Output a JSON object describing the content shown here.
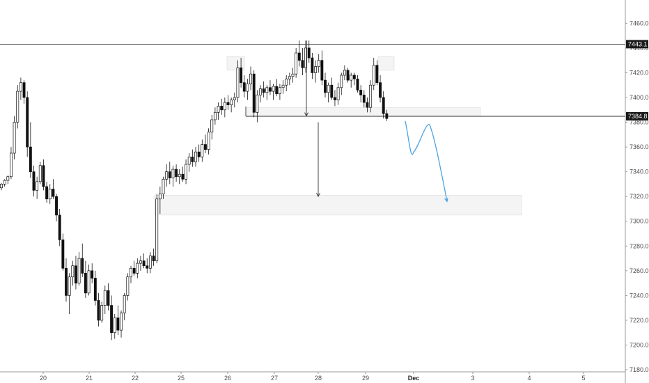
{
  "chart_data": {
    "type": "candlestick",
    "title": "",
    "x_tick_labels": [
      "20",
      "21",
      "22",
      "25",
      "26",
      "27",
      "28",
      "29",
      "Dec",
      "3",
      "4",
      "5"
    ],
    "y_tick_labels": [
      "7180.0",
      "7200.0",
      "7220.0",
      "7240.0",
      "7260.0",
      "7280.0",
      "7300.0",
      "7320.0",
      "7340.0",
      "7360.0",
      "7380.0",
      "7400.0",
      "7420.0",
      "7440.0",
      "7460.0"
    ],
    "ylim": [
      7177,
      7472
    ],
    "grid": false,
    "price_labels": [
      {
        "text": "7443.1",
        "value": 7443.1
      },
      {
        "text": "7384.8",
        "value": 7384.8
      }
    ],
    "horizontal_lines": [
      7443.1,
      7384.8
    ],
    "zones": [
      {
        "name": "support-zone",
        "from": 7385,
        "to": 7392
      },
      {
        "name": "target-zone",
        "from": 7305,
        "to": 7321
      },
      {
        "name": "left-shoulder-zone",
        "from": 7422,
        "to": 7433
      },
      {
        "name": "right-shoulder-zone",
        "from": 7422,
        "to": 7433
      }
    ],
    "measure_arrows": [
      {
        "name": "pattern-height-arrow",
        "from": 7446,
        "to": 7385
      },
      {
        "name": "projection-arrow",
        "from": 7380,
        "to": 7320
      }
    ],
    "projection_path": [
      7381,
      7356,
      7378,
      7316
    ],
    "projection_color": "#4da3e0",
    "candles": [
      [
        7327,
        7331,
        7325,
        7330
      ],
      [
        7330,
        7334,
        7328,
        7333
      ],
      [
        7333,
        7337,
        7330,
        7336
      ],
      [
        7336,
        7360,
        7334,
        7355
      ],
      [
        7355,
        7385,
        7350,
        7380
      ],
      [
        7380,
        7410,
        7375,
        7405
      ],
      [
        7405,
        7416,
        7398,
        7412
      ],
      [
        7412,
        7414,
        7395,
        7400
      ],
      [
        7400,
        7405,
        7352,
        7360
      ],
      [
        7360,
        7380,
        7335,
        7340
      ],
      [
        7340,
        7345,
        7320,
        7325
      ],
      [
        7325,
        7336,
        7318,
        7332
      ],
      [
        7332,
        7348,
        7330,
        7345
      ],
      [
        7345,
        7350,
        7325,
        7328
      ],
      [
        7328,
        7332,
        7315,
        7318
      ],
      [
        7318,
        7330,
        7314,
        7326
      ],
      [
        7326,
        7334,
        7318,
        7320
      ],
      [
        7320,
        7322,
        7300,
        7305
      ],
      [
        7305,
        7310,
        7280,
        7285
      ],
      [
        7285,
        7290,
        7260,
        7262
      ],
      [
        7262,
        7270,
        7235,
        7240
      ],
      [
        7240,
        7258,
        7225,
        7255
      ],
      [
        7255,
        7268,
        7248,
        7264
      ],
      [
        7264,
        7272,
        7245,
        7250
      ],
      [
        7250,
        7275,
        7248,
        7270
      ],
      [
        7270,
        7282,
        7255,
        7258
      ],
      [
        7258,
        7268,
        7238,
        7242
      ],
      [
        7242,
        7265,
        7240,
        7260
      ],
      [
        7260,
        7266,
        7250,
        7254
      ],
      [
        7254,
        7260,
        7232,
        7236
      ],
      [
        7236,
        7242,
        7215,
        7220
      ],
      [
        7220,
        7235,
        7218,
        7232
      ],
      [
        7232,
        7248,
        7225,
        7244
      ],
      [
        7244,
        7250,
        7228,
        7232
      ],
      [
        7232,
        7240,
        7204,
        7210
      ],
      [
        7210,
        7225,
        7205,
        7222
      ],
      [
        7222,
        7232,
        7208,
        7212
      ],
      [
        7212,
        7228,
        7206,
        7226
      ],
      [
        7226,
        7242,
        7220,
        7240
      ],
      [
        7240,
        7258,
        7236,
        7255
      ],
      [
        7255,
        7264,
        7250,
        7262
      ],
      [
        7262,
        7268,
        7256,
        7258
      ],
      [
        7258,
        7270,
        7254,
        7266
      ],
      [
        7266,
        7272,
        7260,
        7268
      ],
      [
        7268,
        7274,
        7262,
        7264
      ],
      [
        7264,
        7270,
        7258,
        7262
      ],
      [
        7262,
        7275,
        7258,
        7272
      ],
      [
        7272,
        7278,
        7264,
        7268
      ],
      [
        7268,
        7322,
        7266,
        7318
      ],
      [
        7318,
        7328,
        7306,
        7322
      ],
      [
        7322,
        7336,
        7318,
        7334
      ],
      [
        7334,
        7346,
        7328,
        7340
      ],
      [
        7340,
        7348,
        7330,
        7335
      ],
      [
        7335,
        7345,
        7328,
        7342
      ],
      [
        7342,
        7346,
        7332,
        7336
      ],
      [
        7336,
        7342,
        7330,
        7338
      ],
      [
        7338,
        7344,
        7332,
        7334
      ],
      [
        7334,
        7350,
        7330,
        7346
      ],
      [
        7346,
        7355,
        7340,
        7352
      ],
      [
        7352,
        7358,
        7344,
        7348
      ],
      [
        7348,
        7360,
        7344,
        7356
      ],
      [
        7356,
        7362,
        7348,
        7352
      ],
      [
        7352,
        7366,
        7348,
        7362
      ],
      [
        7362,
        7370,
        7355,
        7358
      ],
      [
        7358,
        7375,
        7354,
        7372
      ],
      [
        7372,
        7386,
        7366,
        7382
      ],
      [
        7382,
        7392,
        7378,
        7388
      ],
      [
        7388,
        7396,
        7382,
        7393
      ],
      [
        7393,
        7399,
        7386,
        7390
      ],
      [
        7390,
        7400,
        7384,
        7396
      ],
      [
        7396,
        7402,
        7390,
        7394
      ],
      [
        7394,
        7400,
        7388,
        7398
      ],
      [
        7398,
        7404,
        7392,
        7400
      ],
      [
        7400,
        7430,
        7396,
        7424
      ],
      [
        7424,
        7432,
        7408,
        7412
      ],
      [
        7412,
        7418,
        7400,
        7405
      ],
      [
        7405,
        7415,
        7398,
        7411
      ],
      [
        7411,
        7425,
        7406,
        7419
      ],
      [
        7419,
        7422,
        7384,
        7388
      ],
      [
        7388,
        7406,
        7380,
        7402
      ],
      [
        7402,
        7410,
        7396,
        7407
      ],
      [
        7407,
        7413,
        7400,
        7404
      ],
      [
        7404,
        7410,
        7398,
        7408
      ],
      [
        7408,
        7414,
        7402,
        7405
      ],
      [
        7405,
        7411,
        7398,
        7409
      ],
      [
        7409,
        7415,
        7401,
        7403
      ],
      [
        7403,
        7411,
        7398,
        7408
      ],
      [
        7408,
        7414,
        7403,
        7410
      ],
      [
        7410,
        7418,
        7405,
        7415
      ],
      [
        7415,
        7420,
        7410,
        7417
      ],
      [
        7417,
        7424,
        7412,
        7419
      ],
      [
        7419,
        7440,
        7416,
        7436
      ],
      [
        7436,
        7446,
        7425,
        7430
      ],
      [
        7430,
        7440,
        7418,
        7424
      ],
      [
        7424,
        7446,
        7420,
        7440
      ],
      [
        7440,
        7446,
        7428,
        7432
      ],
      [
        7432,
        7436,
        7415,
        7420
      ],
      [
        7420,
        7430,
        7412,
        7425
      ],
      [
        7425,
        7435,
        7420,
        7430
      ],
      [
        7430,
        7438,
        7410,
        7414
      ],
      [
        7414,
        7420,
        7400,
        7404
      ],
      [
        7404,
        7412,
        7396,
        7410
      ],
      [
        7410,
        7416,
        7398,
        7400
      ],
      [
        7400,
        7406,
        7393,
        7398
      ],
      [
        7398,
        7412,
        7394,
        7408
      ],
      [
        7408,
        7420,
        7402,
        7418
      ],
      [
        7418,
        7426,
        7414,
        7422
      ],
      [
        7422,
        7424,
        7412,
        7414
      ],
      [
        7414,
        7420,
        7408,
        7418
      ],
      [
        7418,
        7420,
        7410,
        7415
      ],
      [
        7415,
        7418,
        7404,
        7406
      ],
      [
        7406,
        7410,
        7396,
        7402
      ],
      [
        7402,
        7406,
        7392,
        7396
      ],
      [
        7396,
        7400,
        7388,
        7392
      ],
      [
        7392,
        7414,
        7388,
        7410
      ],
      [
        7410,
        7432,
        7406,
        7426
      ],
      [
        7426,
        7430,
        7410,
        7412
      ],
      [
        7412,
        7418,
        7396,
        7400
      ],
      [
        7400,
        7405,
        7383,
        7387
      ],
      [
        7387,
        7390,
        7381,
        7383
      ]
    ]
  }
}
